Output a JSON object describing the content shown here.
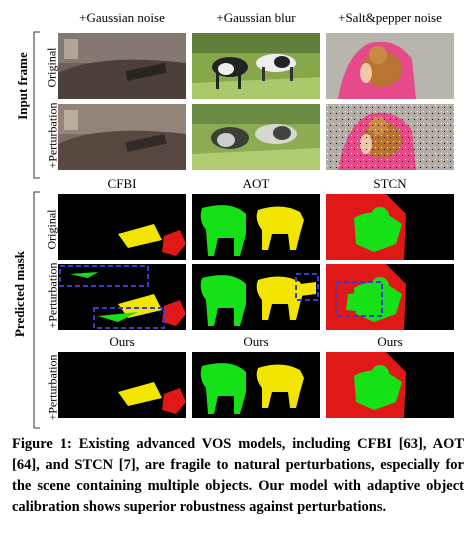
{
  "figure": {
    "columns_top": [
      "+Gaussian noise",
      "+Gaussian blur",
      "+Salt&pepper noise"
    ],
    "columns_mid": [
      "CFBI",
      "AOT",
      "STCN"
    ],
    "columns_bot": [
      "Ours",
      "Ours",
      "Ours"
    ],
    "group_input": "Input frame",
    "group_pred": "Predicted mask",
    "row_original": "Original",
    "row_perturbation": "+Perturbation",
    "colors": {
      "yellow": "#f2e600",
      "red": "#e01818",
      "green": "#16e016",
      "box": "#3a3acc"
    }
  },
  "caption": {
    "label": "Figure 1:",
    "text": "Existing advanced VOS models, including CFBI [63], AOT [64], and STCN [7], are fragile to natural perturbations, especially for the scene containing multiple objects. Our model with adaptive object calibration shows superior robustness against perturbations."
  }
}
